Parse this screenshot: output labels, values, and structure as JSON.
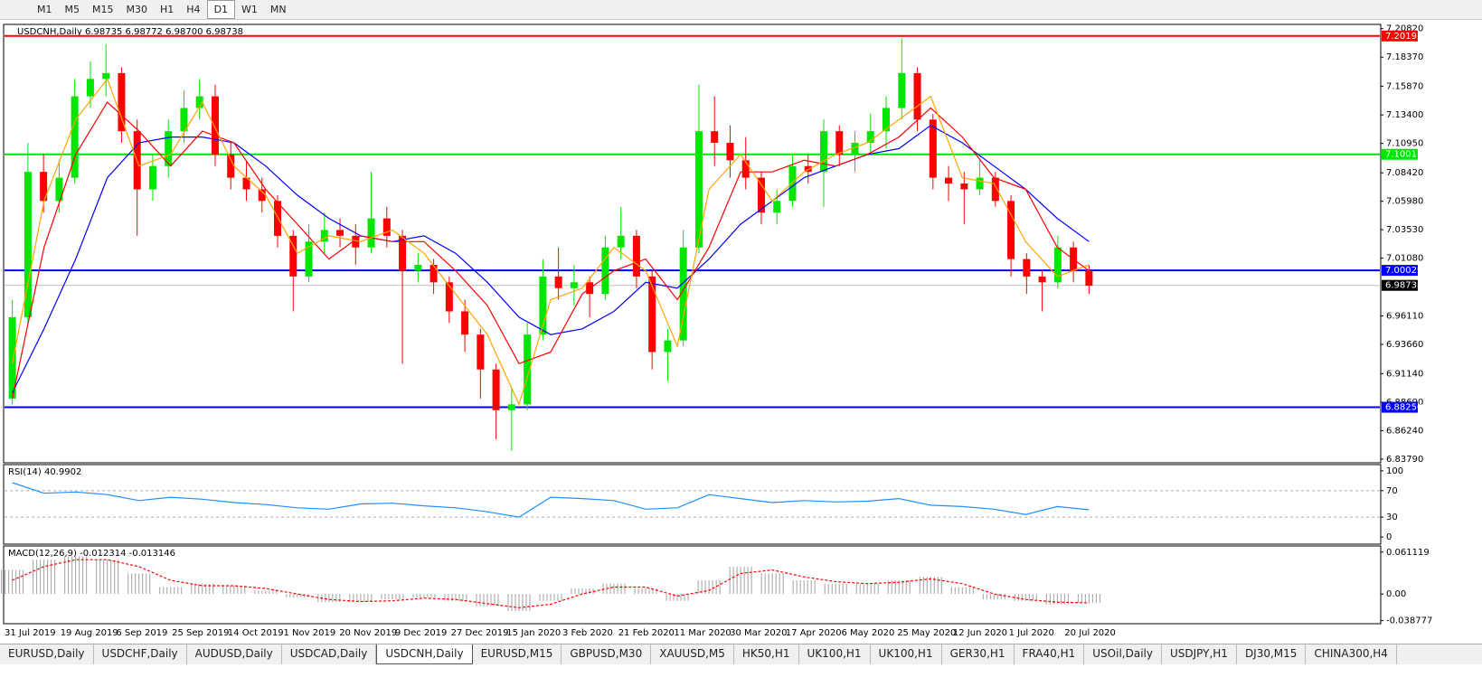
{
  "toolbar": {
    "timeframes": [
      "M1",
      "M5",
      "M15",
      "M30",
      "H1",
      "H4",
      "D1",
      "W1",
      "MN"
    ],
    "active": 6
  },
  "chart_data": {
    "type": "candlestick",
    "header": "USDCNH,Daily  6.98735 6.98772 6.98700 6.98738",
    "up_color": "#00e600",
    "down_color": "#ff0000",
    "ylim": [
      6.8355,
      7.2111
    ],
    "yticks": [
      {
        "value": 7.2082,
        "label": "7.20820"
      },
      {
        "value": 7.1837,
        "label": "7.18370"
      },
      {
        "value": 7.1587,
        "label": "7.15870"
      },
      {
        "value": 7.134,
        "label": "7.13400"
      },
      {
        "value": 7.1095,
        "label": "7.10950"
      },
      {
        "value": 7.0842,
        "label": "7.08420"
      },
      {
        "value": 7.0598,
        "label": "7.05980"
      },
      {
        "value": 7.0353,
        "label": "7.03530"
      },
      {
        "value": 7.0108,
        "label": "7.01080"
      },
      {
        "value": 6.9611,
        "label": "6.96110"
      },
      {
        "value": 6.9366,
        "label": "6.93660"
      },
      {
        "value": 6.9114,
        "label": "6.91140"
      },
      {
        "value": 6.8869,
        "label": "6.88690"
      },
      {
        "value": 6.8624,
        "label": "6.86240"
      },
      {
        "value": 6.8379,
        "label": "6.83790"
      }
    ],
    "candles": [
      [
        6.89,
        6.975,
        6.885,
        6.96
      ],
      [
        6.96,
        7.11,
        6.955,
        7.085
      ],
      [
        7.085,
        7.1,
        7.05,
        7.06
      ],
      [
        7.06,
        7.095,
        7.05,
        7.08
      ],
      [
        7.08,
        7.165,
        7.075,
        7.15
      ],
      [
        7.15,
        7.18,
        7.14,
        7.165
      ],
      [
        7.165,
        7.195,
        7.15,
        7.17
      ],
      [
        7.17,
        7.175,
        7.11,
        7.12
      ],
      [
        7.12,
        7.13,
        7.03,
        7.07
      ],
      [
        7.07,
        7.1,
        7.06,
        7.09
      ],
      [
        7.09,
        7.13,
        7.08,
        7.12
      ],
      [
        7.12,
        7.155,
        7.11,
        7.14
      ],
      [
        7.14,
        7.165,
        7.13,
        7.15
      ],
      [
        7.15,
        7.16,
        7.09,
        7.1
      ],
      [
        7.1,
        7.11,
        7.07,
        7.08
      ],
      [
        7.08,
        7.095,
        7.06,
        7.07
      ],
      [
        7.07,
        7.08,
        7.05,
        7.06
      ],
      [
        7.06,
        7.065,
        7.02,
        7.03
      ],
      [
        7.03,
        7.035,
        6.965,
        6.995
      ],
      [
        6.995,
        7.04,
        6.99,
        7.025
      ],
      [
        7.025,
        7.05,
        7.015,
        7.035
      ],
      [
        7.035,
        7.045,
        7.02,
        7.03
      ],
      [
        7.03,
        7.04,
        7.005,
        7.02
      ],
      [
        7.02,
        7.085,
        7.015,
        7.045
      ],
      [
        7.045,
        7.055,
        7.02,
        7.03
      ],
      [
        7.03,
        7.035,
        6.92,
        7.0
      ],
      [
        7.0,
        7.015,
        6.99,
        7.005
      ],
      [
        7.005,
        7.01,
        6.98,
        6.99
      ],
      [
        6.99,
        6.995,
        6.955,
        6.965
      ],
      [
        6.965,
        6.975,
        6.93,
        6.945
      ],
      [
        6.945,
        6.95,
        6.89,
        6.915
      ],
      [
        6.915,
        6.92,
        6.855,
        6.88
      ],
      [
        6.88,
        6.9,
        6.845,
        6.885
      ],
      [
        6.885,
        6.955,
        6.88,
        6.945
      ],
      [
        6.945,
        7.01,
        6.94,
        6.995
      ],
      [
        6.995,
        7.02,
        6.975,
        6.985
      ],
      [
        6.985,
        7.005,
        6.97,
        6.99
      ],
      [
        6.99,
        6.995,
        6.96,
        6.98
      ],
      [
        6.98,
        7.03,
        6.975,
        7.02
      ],
      [
        7.02,
        7.055,
        7.01,
        7.03
      ],
      [
        7.03,
        7.035,
        6.985,
        6.995
      ],
      [
        6.995,
        7.0,
        6.915,
        6.93
      ],
      [
        6.93,
        6.95,
        6.905,
        6.94
      ],
      [
        6.94,
        7.035,
        6.935,
        7.02
      ],
      [
        7.02,
        7.16,
        7.015,
        7.12
      ],
      [
        7.12,
        7.15,
        7.09,
        7.11
      ],
      [
        7.11,
        7.125,
        7.08,
        7.095
      ],
      [
        7.095,
        7.115,
        7.07,
        7.08
      ],
      [
        7.08,
        7.085,
        7.04,
        7.05
      ],
      [
        7.05,
        7.07,
        7.04,
        7.06
      ],
      [
        7.06,
        7.1,
        7.055,
        7.09
      ],
      [
        7.09,
        7.1,
        7.075,
        7.085
      ],
      [
        7.085,
        7.13,
        7.055,
        7.12
      ],
      [
        7.12,
        7.125,
        7.09,
        7.1
      ],
      [
        7.1,
        7.12,
        7.085,
        7.11
      ],
      [
        7.11,
        7.135,
        7.1,
        7.12
      ],
      [
        7.12,
        7.15,
        7.105,
        7.14
      ],
      [
        7.14,
        7.2,
        7.13,
        7.17
      ],
      [
        7.17,
        7.175,
        7.12,
        7.13
      ],
      [
        7.13,
        7.135,
        7.07,
        7.08
      ],
      [
        7.08,
        7.09,
        7.06,
        7.075
      ],
      [
        7.075,
        7.085,
        7.04,
        7.07
      ],
      [
        7.07,
        7.095,
        7.065,
        7.08
      ],
      [
        7.08,
        7.085,
        7.055,
        7.06
      ],
      [
        7.06,
        7.065,
        6.995,
        7.01
      ],
      [
        7.01,
        7.015,
        6.98,
        6.995
      ],
      [
        6.995,
        7.0,
        6.965,
        6.99
      ],
      [
        6.99,
        7.03,
        6.985,
        7.02
      ],
      [
        7.02,
        7.025,
        6.99,
        7.0
      ],
      [
        7.0,
        7.005,
        6.98,
        6.987
      ]
    ],
    "moving_averages": [
      {
        "color": "#0000ff",
        "values": [
          6.895,
          6.95,
          7.01,
          7.08,
          7.11,
          7.115,
          7.115,
          7.11,
          7.09,
          7.065,
          7.045,
          7.03,
          7.025,
          7.03,
          7.015,
          6.99,
          6.96,
          6.945,
          6.95,
          6.965,
          6.99,
          6.985,
          7.01,
          7.04,
          7.06,
          7.08,
          7.09,
          7.1,
          7.105,
          7.125,
          7.11,
          7.09,
          7.07,
          7.045,
          7.025
        ]
      },
      {
        "color": "#ff0000",
        "values": [
          6.89,
          7.02,
          7.1,
          7.145,
          7.12,
          7.09,
          7.12,
          7.11,
          7.07,
          7.04,
          7.01,
          7.03,
          7.025,
          7.025,
          7.0,
          6.97,
          6.92,
          6.93,
          6.98,
          7.0,
          7.01,
          6.975,
          7.02,
          7.085,
          7.085,
          7.095,
          7.09,
          7.1,
          7.115,
          7.14,
          7.115,
          7.08,
          7.07,
          7.02,
          7.0
        ]
      },
      {
        "color": "#ffa500",
        "values": [
          6.92,
          7.06,
          7.13,
          7.165,
          7.09,
          7.1,
          7.145,
          7.09,
          7.065,
          7.015,
          7.03,
          7.025,
          7.035,
          7.015,
          6.98,
          6.945,
          6.885,
          6.975,
          6.985,
          7.02,
          7.0,
          6.935,
          7.07,
          7.1,
          7.06,
          7.085,
          7.1,
          7.11,
          7.13,
          7.15,
          7.08,
          7.075,
          7.025,
          6.995,
          7.005
        ]
      }
    ],
    "levels": [
      {
        "value": 7.20193,
        "color": "#ff0000"
      },
      {
        "value": 7.10011,
        "color": "#00e600"
      },
      {
        "value": 7.00029,
        "color": "#0000ff"
      },
      {
        "value": 6.8825,
        "label": "6.88250",
        "color": "#0000ff"
      }
    ],
    "last_price": 6.98738,
    "x_labels": [
      "31 Jul 2019",
      "19 Aug 2019",
      "6 Sep 2019",
      "25 Sep 2019",
      "14 Oct 2019",
      "1 Nov 2019",
      "20 Nov 2019",
      "9 Dec 2019",
      "27 Dec 2019",
      "15 Jan 2020",
      "3 Feb 2020",
      "21 Feb 2020",
      "11 Mar 2020",
      "30 Mar 2020",
      "17 Apr 2020",
      "6 May 2020",
      "25 May 2020",
      "12 Jun 2020",
      "1 Jul 2020",
      "20 Jul 2020"
    ],
    "rsi": {
      "title": "RSI(14) 40.9902",
      "color": "#1e90ff",
      "ylim": [
        -9.5,
        108
      ],
      "yticks": [
        100,
        70,
        30,
        0
      ],
      "levels": [
        70,
        30
      ],
      "values": [
        82,
        66,
        68,
        64,
        55,
        60,
        57,
        52,
        49,
        44,
        42,
        50,
        51,
        47,
        44,
        38,
        30,
        60,
        58,
        55,
        42,
        44,
        64,
        58,
        52,
        55,
        53,
        54,
        58,
        48,
        46,
        42,
        34,
        46,
        41
      ]
    },
    "macd": {
      "title": "MACD(12,26,9) -0.012314 -0.013146",
      "hist_color": "#a0a0a0",
      "signal_color": "#ff0000",
      "ylim": [
        -0.042,
        0.0687
      ],
      "yticks": [
        0.061119,
        {
          "value": 0,
          "label": "0.00"
        },
        -0.038777
      ],
      "histogram": [
        0.035,
        0.05,
        0.055,
        0.05,
        0.03,
        0.01,
        0.015,
        0.012,
        0.005,
        -0.005,
        -0.012,
        -0.012,
        -0.008,
        -0.005,
        -0.01,
        -0.018,
        -0.025,
        -0.01,
        0.008,
        0.015,
        0.008,
        -0.01,
        0.02,
        0.04,
        0.03,
        0.02,
        0.015,
        0.015,
        0.02,
        0.025,
        0.01,
        -0.008,
        -0.01,
        -0.015,
        -0.013
      ],
      "signal": [
        0.02,
        0.04,
        0.05,
        0.05,
        0.04,
        0.02,
        0.012,
        0.012,
        0.008,
        0.0,
        -0.008,
        -0.011,
        -0.01,
        -0.006,
        -0.008,
        -0.014,
        -0.02,
        -0.015,
        0.0,
        0.01,
        0.01,
        -0.003,
        0.005,
        0.03,
        0.035,
        0.025,
        0.018,
        0.015,
        0.017,
        0.022,
        0.015,
        0.0,
        -0.008,
        -0.012,
        -0.013
      ]
    }
  },
  "tabs": {
    "items": [
      "EURUSD,Daily",
      "USDCHF,Daily",
      "AUDUSD,Daily",
      "USDCAD,Daily",
      "USDCNH,Daily",
      "EURUSD,M15",
      "GBPUSD,M30",
      "XAUUSD,M5",
      "HK50,H1",
      "UK100,H1",
      "UK100,H1",
      "GER30,H1",
      "FRA40,H1",
      "USOil,Daily",
      "USDJPY,H1",
      "DJ30,M15",
      "CHINA300,H4"
    ],
    "active": 4
  }
}
